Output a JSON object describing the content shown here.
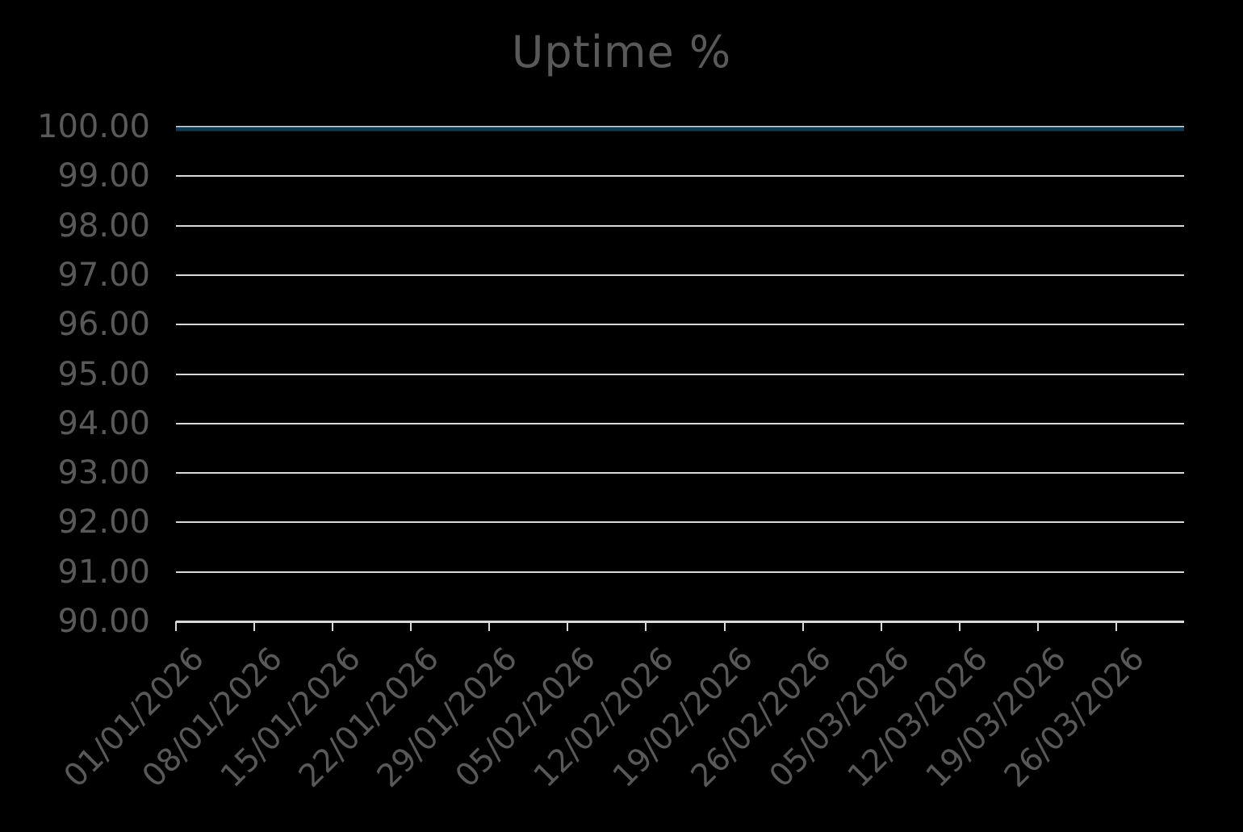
{
  "chart_data": {
    "type": "line",
    "title": "Uptime %",
    "xlabel": "",
    "ylabel": "",
    "x_labels": [
      "01/01/2026",
      "08/01/2026",
      "15/01/2026",
      "22/01/2026",
      "29/01/2026",
      "05/02/2026",
      "12/02/2026",
      "19/02/2026",
      "26/02/2026",
      "05/03/2026",
      "12/03/2026",
      "19/03/2026",
      "26/03/2026"
    ],
    "y_tick_labels": [
      "100.00",
      "99.00",
      "98.00",
      "97.00",
      "96.00",
      "95.00",
      "94.00",
      "93.00",
      "92.00",
      "91.00",
      "90.00"
    ],
    "ylim": [
      90,
      100
    ],
    "grid": true,
    "legend": "none",
    "series": [
      {
        "name": "Uptime %",
        "values": [
          100,
          100,
          100,
          100,
          100,
          100,
          100,
          100,
          100,
          100,
          100,
          100,
          100
        ]
      }
    ]
  },
  "colors": {
    "background": "#000000",
    "title_text": "#595959",
    "axis_text": "#595959",
    "gridline": "#d9d9d9",
    "axis_line": "#d9d9d9",
    "series_line": "#0e3a52"
  }
}
